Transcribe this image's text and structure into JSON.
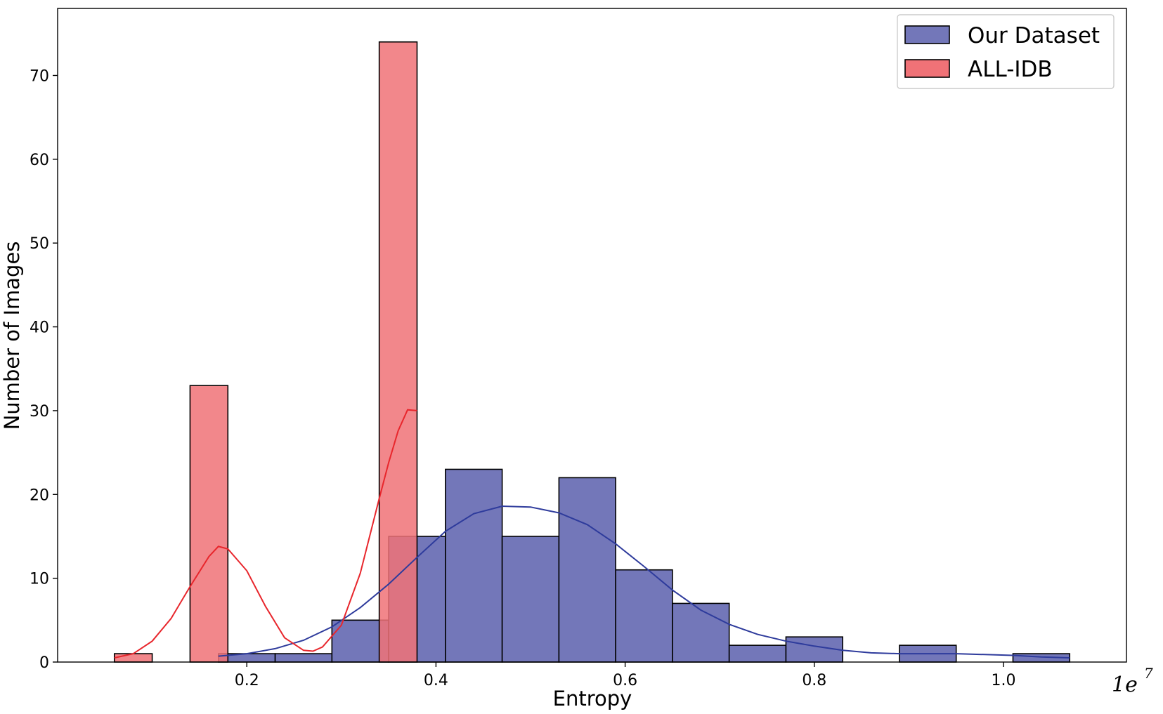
{
  "chart_data": {
    "type": "histogram",
    "title": "",
    "xlabel": "Entropy",
    "ylabel": "Number of Images",
    "x_offset_label": {
      "base": "1e",
      "exponent": "7"
    },
    "xlim": [
      0.0,
      1.13
    ],
    "ylim": [
      0,
      78
    ],
    "xticks": [
      0.2,
      0.4,
      0.6,
      0.8,
      1.0
    ],
    "xtick_labels": [
      "0.2",
      "0.4",
      "0.6",
      "0.8",
      "1.0"
    ],
    "yticks": [
      0,
      10,
      20,
      30,
      40,
      50,
      60,
      70
    ],
    "ytick_labels": [
      "0",
      "10",
      "20",
      "30",
      "40",
      "50",
      "60",
      "70"
    ],
    "legend_position": "upper-right",
    "series": [
      {
        "name": "Our Dataset",
        "color": "#7377b9",
        "kde_color": "#2e3b9c",
        "bins": [
          {
            "x0": 0.17,
            "x1": 0.23,
            "count": 1
          },
          {
            "x0": 0.23,
            "x1": 0.29,
            "count": 1
          },
          {
            "x0": 0.29,
            "x1": 0.35,
            "count": 5
          },
          {
            "x0": 0.35,
            "x1": 0.41,
            "count": 15
          },
          {
            "x0": 0.41,
            "x1": 0.47,
            "count": 23
          },
          {
            "x0": 0.47,
            "x1": 0.53,
            "count": 15
          },
          {
            "x0": 0.53,
            "x1": 0.59,
            "count": 22
          },
          {
            "x0": 0.59,
            "x1": 0.65,
            "count": 11
          },
          {
            "x0": 0.65,
            "x1": 0.71,
            "count": 7
          },
          {
            "x0": 0.71,
            "x1": 0.77,
            "count": 2
          },
          {
            "x0": 0.77,
            "x1": 0.83,
            "count": 3
          },
          {
            "x0": 0.89,
            "x1": 0.95,
            "count": 2
          },
          {
            "x0": 1.01,
            "x1": 1.07,
            "count": 1
          }
        ],
        "kde": [
          [
            0.17,
            0.7
          ],
          [
            0.2,
            1.0
          ],
          [
            0.23,
            1.6
          ],
          [
            0.26,
            2.6
          ],
          [
            0.29,
            4.2
          ],
          [
            0.32,
            6.5
          ],
          [
            0.35,
            9.3
          ],
          [
            0.38,
            12.5
          ],
          [
            0.41,
            15.6
          ],
          [
            0.44,
            17.7
          ],
          [
            0.47,
            18.6
          ],
          [
            0.5,
            18.5
          ],
          [
            0.53,
            17.8
          ],
          [
            0.56,
            16.4
          ],
          [
            0.59,
            14.1
          ],
          [
            0.62,
            11.4
          ],
          [
            0.65,
            8.6
          ],
          [
            0.68,
            6.2
          ],
          [
            0.71,
            4.5
          ],
          [
            0.74,
            3.3
          ],
          [
            0.77,
            2.5
          ],
          [
            0.8,
            1.9
          ],
          [
            0.83,
            1.4
          ],
          [
            0.86,
            1.1
          ],
          [
            0.89,
            1.0
          ],
          [
            0.92,
            1.0
          ],
          [
            0.95,
            1.0
          ],
          [
            0.98,
            0.9
          ],
          [
            1.01,
            0.8
          ],
          [
            1.04,
            0.6
          ],
          [
            1.07,
            0.5
          ]
        ]
      },
      {
        "name": "ALL-IDB",
        "color": "#f07277",
        "kde_color": "#e8262c",
        "bins": [
          {
            "x0": 0.06,
            "x1": 0.1,
            "count": 1
          },
          {
            "x0": 0.14,
            "x1": 0.18,
            "count": 33
          },
          {
            "x0": 0.34,
            "x1": 0.38,
            "count": 74
          }
        ],
        "kde": [
          [
            0.06,
            0.5
          ],
          [
            0.08,
            1.0
          ],
          [
            0.1,
            2.5
          ],
          [
            0.12,
            5.2
          ],
          [
            0.14,
            9.0
          ],
          [
            0.16,
            12.6
          ],
          [
            0.17,
            13.8
          ],
          [
            0.18,
            13.5
          ],
          [
            0.2,
            10.9
          ],
          [
            0.22,
            6.6
          ],
          [
            0.24,
            2.9
          ],
          [
            0.26,
            1.4
          ],
          [
            0.27,
            1.3
          ],
          [
            0.28,
            1.8
          ],
          [
            0.3,
            4.4
          ],
          [
            0.32,
            10.6
          ],
          [
            0.34,
            19.5
          ],
          [
            0.35,
            23.8
          ],
          [
            0.36,
            27.6
          ],
          [
            0.37,
            30.1
          ],
          [
            0.38,
            30.0
          ]
        ]
      }
    ]
  }
}
